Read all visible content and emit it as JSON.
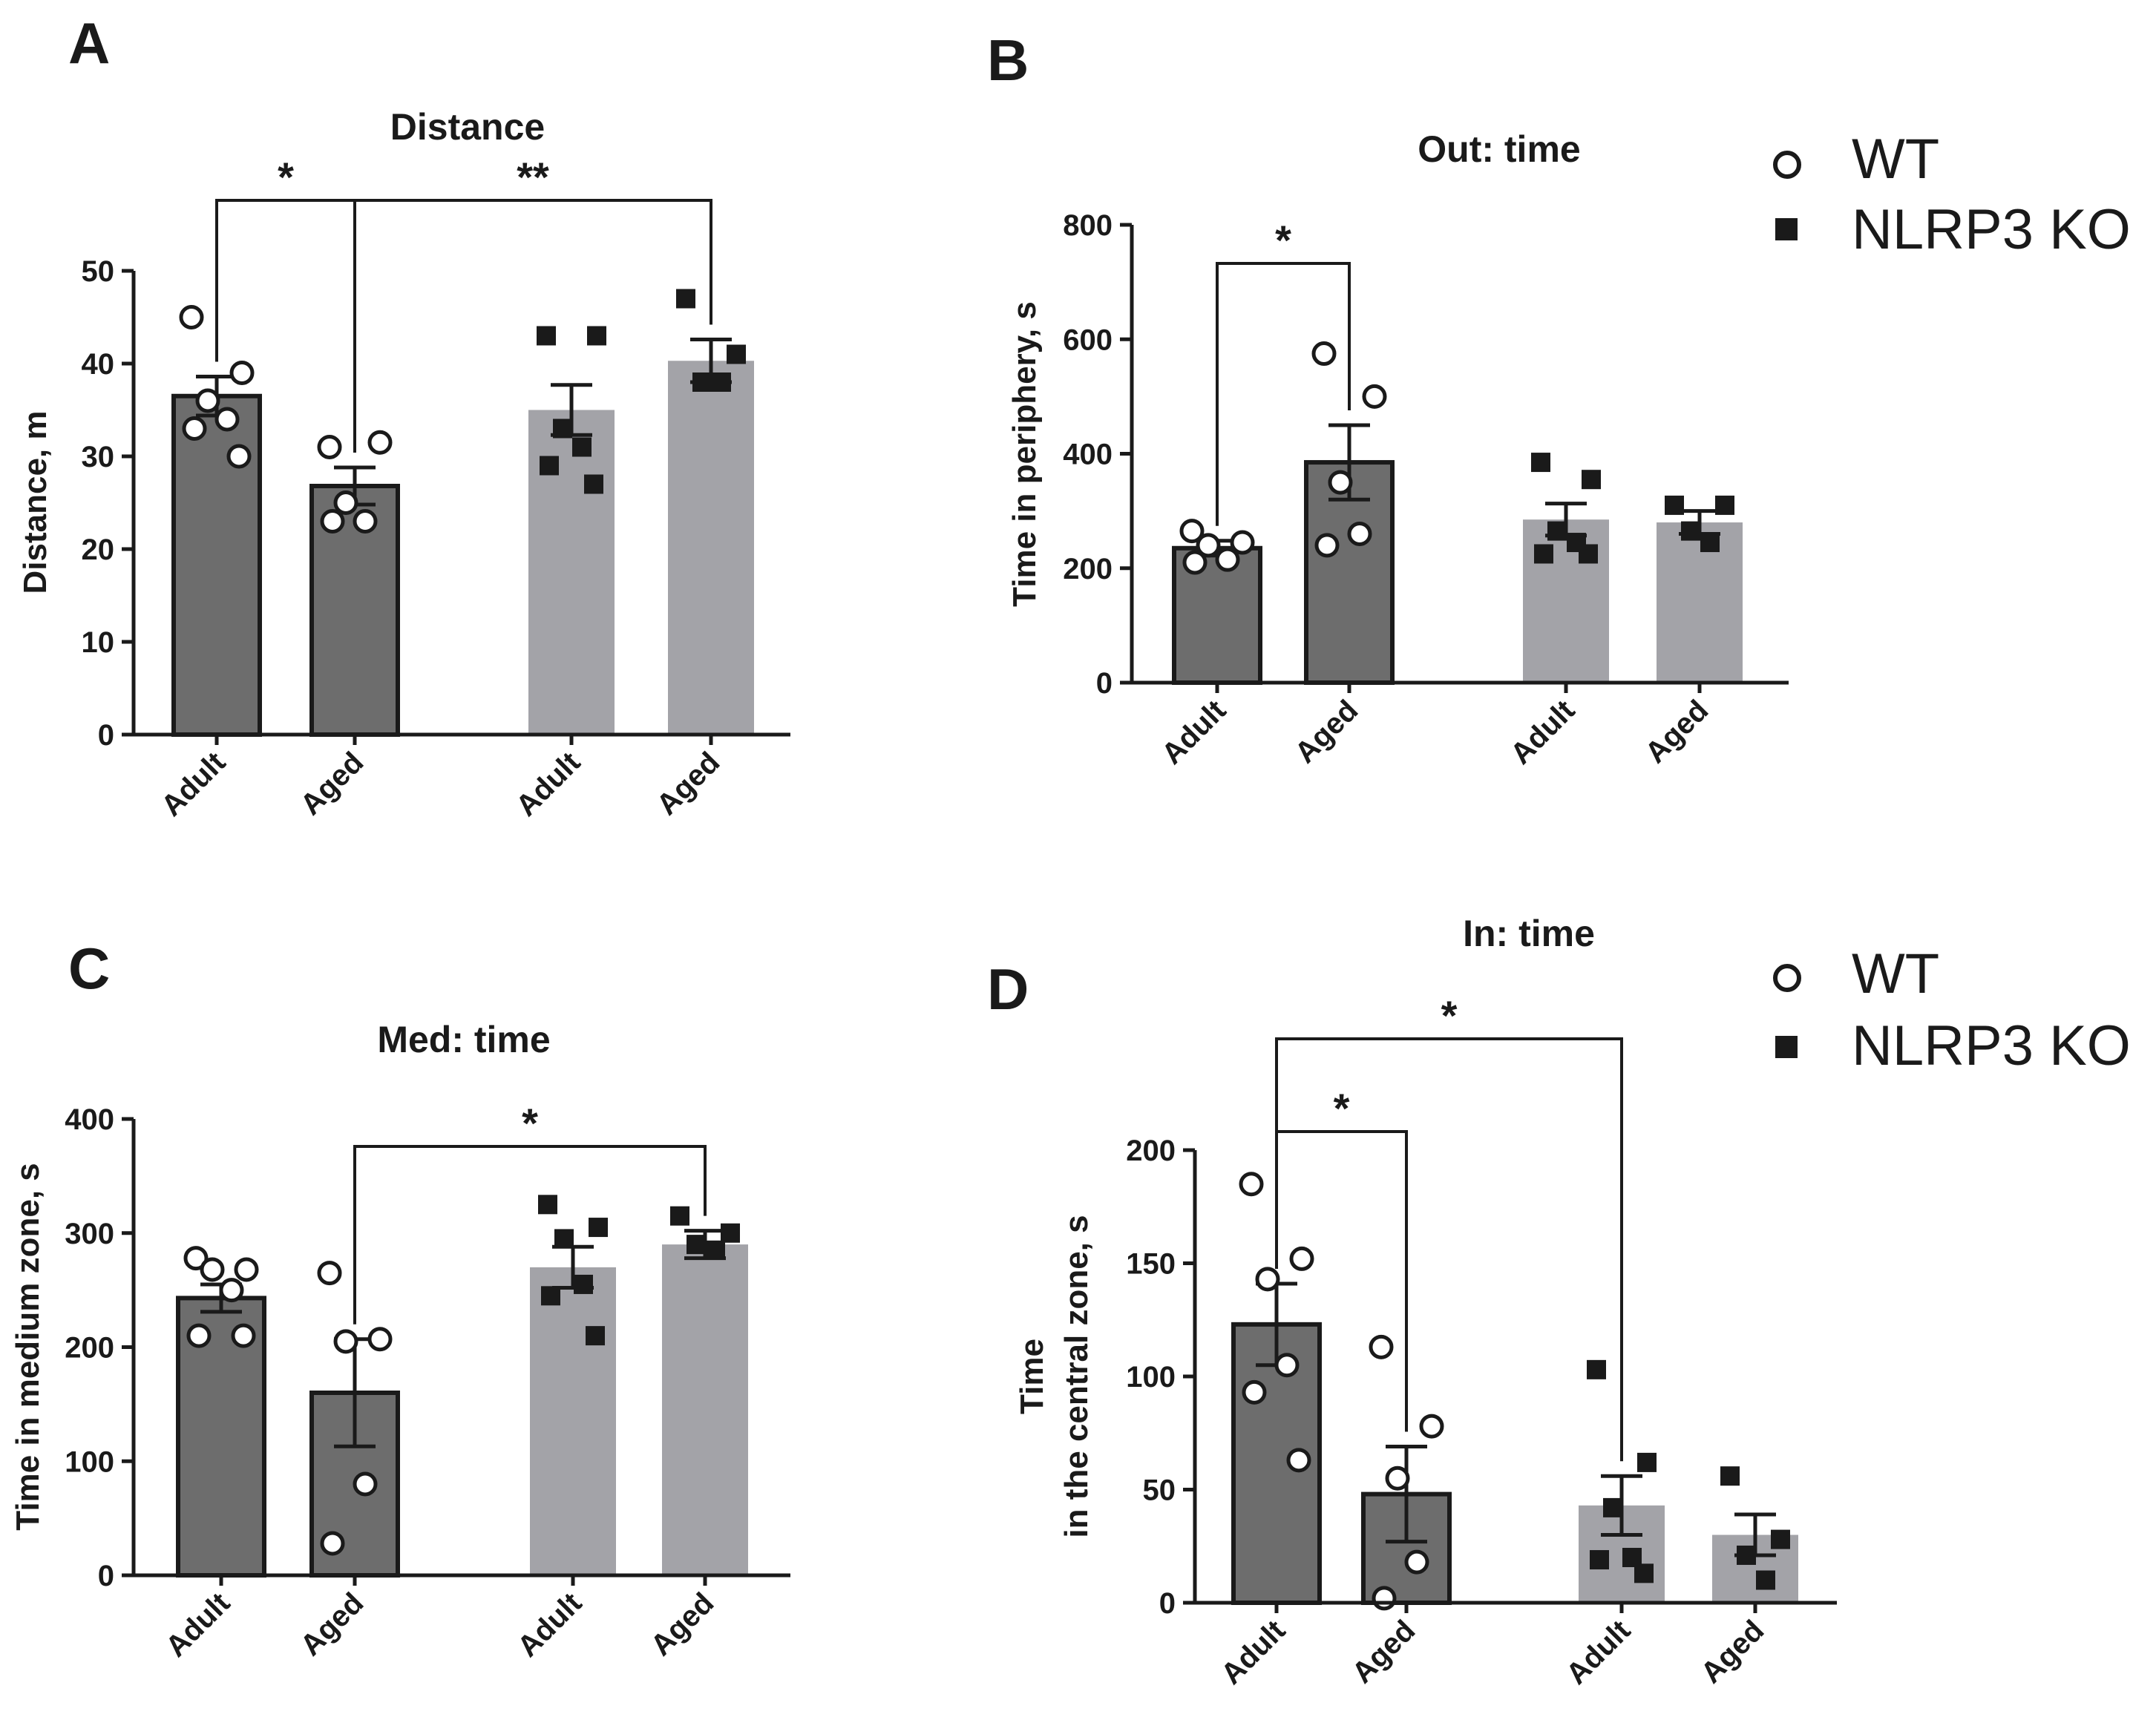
{
  "panels": [
    {
      "label": "A",
      "title": "Distance"
    },
    {
      "label": "B",
      "title": "Out: time"
    },
    {
      "label": "C",
      "title": "Med: time"
    },
    {
      "label": "D",
      "title": "In: time"
    }
  ],
  "legend": {
    "wt_label": "WT",
    "ko_label": "NLRP3 KO"
  },
  "colors": {
    "wt_bar": "#6d6d6d",
    "ko_bar": "#a3a3a8",
    "ink": "#1a1a1a"
  },
  "chart_data": [
    {
      "type": "bar",
      "panel": "A",
      "title": "Distance",
      "ylabel": "Distance, m",
      "ylim": [
        0,
        50
      ],
      "yticks": [
        "0",
        "10",
        "20",
        "30",
        "40",
        "50"
      ],
      "categories": [
        "Adult",
        "Aged",
        "Adult",
        "Aged"
      ],
      "groups": [
        "WT",
        "WT",
        "NLRP3 KO",
        "NLRP3 KO"
      ],
      "values": [
        36.5,
        26.8,
        35,
        40.3
      ],
      "sem": [
        2.1,
        2.0,
        2.7,
        2.3
      ],
      "points": [
        [
          45,
          39,
          36,
          34,
          33,
          30
        ],
        [
          31,
          31.5,
          25,
          23,
          23
        ],
        [
          43,
          43,
          33,
          31,
          29,
          27
        ],
        [
          47,
          41,
          38,
          38
        ]
      ],
      "significance": [
        {
          "from": 0,
          "to": 1,
          "label": "*"
        },
        {
          "from": 1,
          "to": 3,
          "label": "**"
        }
      ]
    },
    {
      "type": "bar",
      "panel": "B",
      "title": "Out: time",
      "ylabel": "Time in periphery, s",
      "ylim": [
        0,
        800
      ],
      "yticks": [
        "0",
        "200",
        "400",
        "600",
        "800"
      ],
      "categories": [
        "Adult",
        "Aged",
        "Adult",
        "Aged"
      ],
      "groups": [
        "WT",
        "WT",
        "NLRP3 KO",
        "NLRP3 KO"
      ],
      "values": [
        235,
        385,
        285,
        280
      ],
      "sem": [
        13,
        65,
        28,
        20
      ],
      "points": [
        [
          265,
          245,
          240,
          215,
          210
        ],
        [
          575,
          500,
          350,
          260,
          240
        ],
        [
          385,
          355,
          265,
          245,
          225,
          225
        ],
        [
          310,
          310,
          265,
          245
        ]
      ],
      "significance": [
        {
          "from": 0,
          "to": 1,
          "label": "*"
        }
      ]
    },
    {
      "type": "bar",
      "panel": "C",
      "title": "Med: time",
      "ylabel": "Time in medium zone, s",
      "ylim": [
        0,
        400
      ],
      "yticks": [
        "0",
        "100",
        "200",
        "300",
        "400"
      ],
      "categories": [
        "Adult",
        "Aged",
        "Adult",
        "Aged"
      ],
      "groups": [
        "WT",
        "WT",
        "NLRP3 KO",
        "NLRP3 KO"
      ],
      "values": [
        243,
        160,
        270,
        290
      ],
      "sem": [
        12,
        47,
        18,
        12
      ],
      "points": [
        [
          278,
          268,
          268,
          250,
          210,
          210
        ],
        [
          265,
          207,
          205,
          80,
          28
        ],
        [
          325,
          305,
          295,
          255,
          245,
          210
        ],
        [
          315,
          300,
          290,
          285
        ]
      ],
      "significance": [
        {
          "from": 1,
          "to": 3,
          "label": "*"
        }
      ]
    },
    {
      "type": "bar",
      "panel": "D",
      "title": "In: time",
      "ylabel_line1": "Time",
      "ylabel_line2": "in the central zone, s",
      "ylim": [
        0,
        200
      ],
      "yticks": [
        "0",
        "50",
        "100",
        "150",
        "200"
      ],
      "categories": [
        "Adult",
        "Aged",
        "Adult",
        "Aged"
      ],
      "groups": [
        "WT",
        "WT",
        "NLRP3 KO",
        "NLRP3 KO"
      ],
      "values": [
        123,
        48,
        43,
        30
      ],
      "sem": [
        18,
        21,
        13,
        9
      ],
      "points": [
        [
          185,
          152,
          143,
          105,
          93,
          63
        ],
        [
          113,
          78,
          55,
          18,
          2
        ],
        [
          103,
          62,
          42,
          20,
          19,
          13
        ],
        [
          56,
          28,
          21,
          10
        ]
      ],
      "significance": [
        {
          "from": 0,
          "to": 1,
          "label": "*"
        },
        {
          "from": 0,
          "to": 2,
          "label": "*"
        }
      ]
    }
  ]
}
